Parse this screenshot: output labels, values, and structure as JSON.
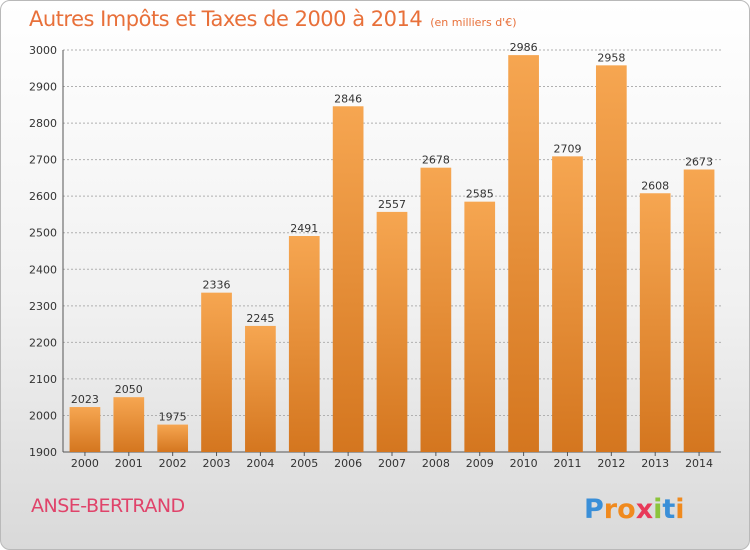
{
  "header": {
    "title": "Autres Impôts et Taxes de 2000 à 2014",
    "subtitle": "(en milliers d'€)"
  },
  "footer": {
    "place": "ANSE-BERTRAND",
    "logo_text": "Proxiti"
  },
  "colors": {
    "bar_top": "#f6a651",
    "bar_bottom": "#d4761f",
    "title": "#e8703a",
    "place": "#e0436a",
    "grid": "#b0b0b0"
  },
  "chart_data": {
    "type": "bar",
    "title": "Autres Impôts et Taxes de 2000 à 2014",
    "subtitle": "(en milliers d'€)",
    "categories": [
      "2000",
      "2001",
      "2002",
      "2003",
      "2004",
      "2005",
      "2006",
      "2007",
      "2008",
      "2009",
      "2010",
      "2011",
      "2012",
      "2013",
      "2014"
    ],
    "values": [
      2023,
      2050,
      1975,
      2336,
      2245,
      2491,
      2846,
      2557,
      2678,
      2585,
      2986,
      2709,
      2958,
      2608,
      2673
    ],
    "ylim": [
      1900,
      3000
    ],
    "yticks": [
      1900,
      2000,
      2100,
      2200,
      2300,
      2400,
      2500,
      2600,
      2700,
      2800,
      2900,
      3000
    ],
    "grid": true,
    "data_labels": true
  }
}
